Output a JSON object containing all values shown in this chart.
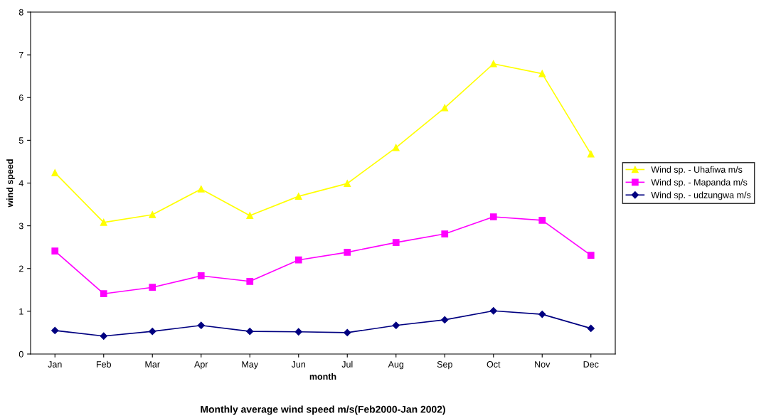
{
  "chart_data": {
    "type": "line",
    "title": "Monthly average wind speed m/s(Feb2000-Jan 2002)",
    "xlabel": "month",
    "ylabel": "wind speed",
    "categories": [
      "Jan",
      "Feb",
      "Mar",
      "Apr",
      "May",
      "Jun",
      "Jul",
      "Aug",
      "Sep",
      "Oct",
      "Nov",
      "Dec"
    ],
    "series": [
      {
        "name": "Wind sp. - Uhafiwa m/s",
        "color": "#ffff00",
        "marker": "triangle",
        "values": [
          4.24,
          3.08,
          3.26,
          3.86,
          3.24,
          3.69,
          3.99,
          4.83,
          5.76,
          6.79,
          6.56,
          4.68
        ]
      },
      {
        "name": "Wind sp. - Mapanda m/s",
        "color": "#ff00ff",
        "marker": "square",
        "values": [
          2.41,
          1.41,
          1.56,
          1.83,
          1.7,
          2.2,
          2.38,
          2.61,
          2.81,
          3.21,
          3.13,
          2.31
        ]
      },
      {
        "name": "Wind sp. - udzungwa m/s",
        "color": "#000080",
        "marker": "diamond",
        "values": [
          0.55,
          0.42,
          0.53,
          0.67,
          0.53,
          0.52,
          0.5,
          0.67,
          0.8,
          1.01,
          0.93,
          0.6
        ]
      }
    ],
    "ylim": [
      0,
      8
    ],
    "yticks": [
      0,
      1,
      2,
      3,
      4,
      5,
      6,
      7,
      8
    ],
    "grid": false,
    "legend": "right"
  }
}
